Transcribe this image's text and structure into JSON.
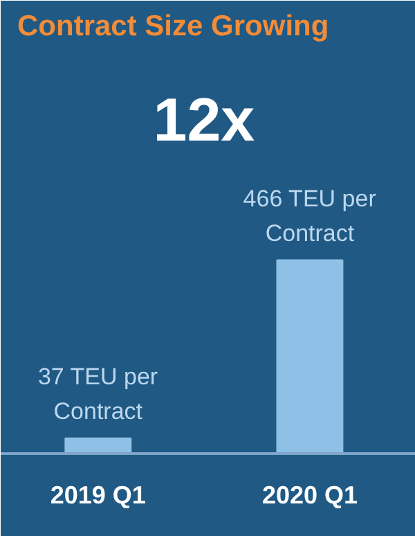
{
  "chart_data": {
    "type": "bar",
    "title": "Contract Size Growing",
    "categories": [
      "2019 Q1",
      "2020 Q1"
    ],
    "values": [
      37,
      466
    ],
    "value_labels": [
      "37 TEU per Contract",
      "466 TEU per Contract"
    ],
    "color": "#8fc1e7",
    "annotations": [
      "12x"
    ]
  }
}
